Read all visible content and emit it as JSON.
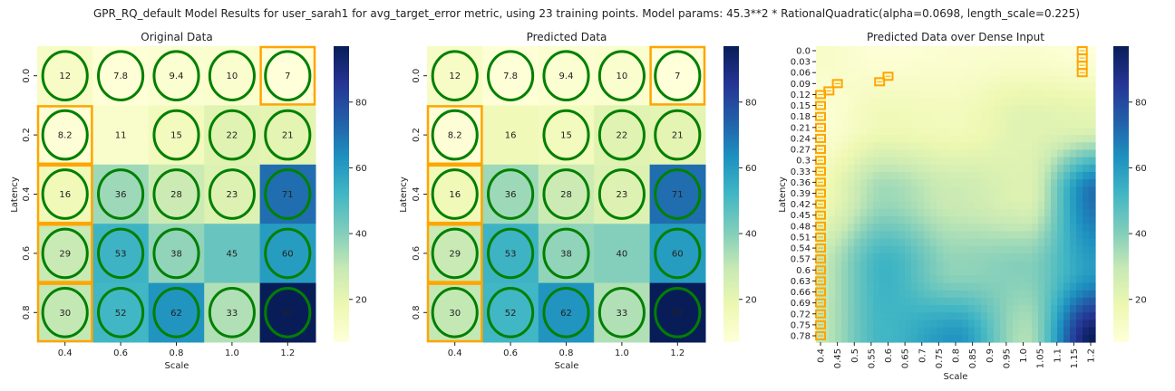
{
  "suptitle": "GPR_RQ_default Model Results for user_sarah1 for avg_target_error metric, using 23 training points. Model params: 45.3**2 * RationalQuadratic(alpha=0.0698, length_scale=0.225)",
  "colors": {
    "cmap": [
      "#ffffd9",
      "#edf8b1",
      "#c7e9b4",
      "#7fcdbb",
      "#41b6c4",
      "#1d91c0",
      "#225ea8",
      "#253494",
      "#081d58"
    ],
    "circle": "#008000",
    "box": "#ffa500"
  },
  "chart_data": [
    {
      "type": "heatmap",
      "title": "Original Data",
      "xlabel": "Scale",
      "ylabel": "Latency",
      "x_ticks": [
        "0.4",
        "0.6",
        "0.8",
        "1.0",
        "1.2"
      ],
      "y_ticks": [
        "0.0",
        "0.2",
        "0.4",
        "0.6",
        "0.8"
      ],
      "values": [
        [
          12,
          7.8,
          9.4,
          10,
          7
        ],
        [
          8.2,
          11,
          15,
          22,
          21
        ],
        [
          16,
          36,
          28,
          23,
          71
        ],
        [
          29,
          53,
          38,
          45,
          60
        ],
        [
          30,
          52,
          62,
          33,
          97
        ]
      ],
      "training_cells": [
        [
          0,
          0
        ],
        [
          0,
          1
        ],
        [
          0,
          2
        ],
        [
          0,
          3
        ],
        [
          0,
          4
        ],
        [
          1,
          0
        ],
        [
          1,
          2
        ],
        [
          1,
          3
        ],
        [
          1,
          4
        ],
        [
          2,
          0
        ],
        [
          2,
          1
        ],
        [
          2,
          2
        ],
        [
          2,
          3
        ],
        [
          2,
          4
        ],
        [
          3,
          0
        ],
        [
          3,
          1
        ],
        [
          3,
          2
        ],
        [
          3,
          4
        ],
        [
          4,
          0
        ],
        [
          4,
          1
        ],
        [
          4,
          2
        ],
        [
          4,
          3
        ],
        [
          4,
          4
        ]
      ],
      "highlight_cells": [
        [
          0,
          4
        ],
        [
          1,
          0
        ],
        [
          2,
          0
        ],
        [
          3,
          0
        ],
        [
          4,
          0
        ]
      ],
      "colorbar_ticks": [
        20,
        40,
        60,
        80
      ],
      "vrange": [
        7,
        97
      ]
    },
    {
      "type": "heatmap",
      "title": "Predicted Data",
      "xlabel": "Scale",
      "ylabel": "Latency",
      "x_ticks": [
        "0.4",
        "0.6",
        "0.8",
        "1.0",
        "1.2"
      ],
      "y_ticks": [
        "0.0",
        "0.2",
        "0.4",
        "0.6",
        "0.8"
      ],
      "values": [
        [
          12,
          7.8,
          9.4,
          10,
          7
        ],
        [
          8.2,
          16,
          15,
          22,
          21
        ],
        [
          16,
          36,
          28,
          23,
          71
        ],
        [
          29,
          53,
          38,
          40,
          60
        ],
        [
          30,
          52,
          62,
          33,
          97
        ]
      ],
      "training_cells": [
        [
          0,
          0
        ],
        [
          0,
          1
        ],
        [
          0,
          2
        ],
        [
          0,
          3
        ],
        [
          0,
          4
        ],
        [
          1,
          0
        ],
        [
          1,
          2
        ],
        [
          1,
          3
        ],
        [
          1,
          4
        ],
        [
          2,
          0
        ],
        [
          2,
          1
        ],
        [
          2,
          2
        ],
        [
          2,
          3
        ],
        [
          2,
          4
        ],
        [
          3,
          0
        ],
        [
          3,
          1
        ],
        [
          3,
          2
        ],
        [
          3,
          4
        ],
        [
          4,
          0
        ],
        [
          4,
          1
        ],
        [
          4,
          2
        ],
        [
          4,
          3
        ],
        [
          4,
          4
        ]
      ],
      "highlight_cells": [
        [
          0,
          4
        ],
        [
          1,
          0
        ],
        [
          2,
          0
        ],
        [
          3,
          0
        ],
        [
          4,
          0
        ]
      ],
      "colorbar_ticks": [
        20,
        40,
        60,
        80
      ],
      "vrange": [
        7,
        97
      ]
    },
    {
      "type": "heatmap",
      "title": "Predicted Data over Dense Input",
      "xlabel": "Scale",
      "ylabel": "Latency",
      "x_ticks": [
        "0.4",
        "0.45",
        "0.5",
        "0.55",
        "0.6",
        "0.65",
        "0.7",
        "0.75",
        "0.8",
        "0.85",
        "0.9",
        "0.95",
        "1.0",
        "1.05",
        "1.1",
        "1.15",
        "1.2"
      ],
      "y_ticks": [
        "0.0",
        "0.03",
        "0.06",
        "0.09",
        "0.12",
        "0.15",
        "0.18",
        "0.21",
        "0.24",
        "0.27",
        "0.3",
        "0.33",
        "0.36",
        "0.39",
        "0.42",
        "0.45",
        "0.48",
        "0.51",
        "0.54",
        "0.57",
        "0.6",
        "0.63",
        "0.66",
        "0.69",
        "0.72",
        "0.75",
        "0.78"
      ],
      "x_range": [
        0.4,
        1.2
      ],
      "y_range": [
        0.0,
        0.8
      ],
      "source_grid_x": [
        0.4,
        0.6,
        0.8,
        1.0,
        1.2
      ],
      "source_grid_y": [
        0.0,
        0.2,
        0.4,
        0.6,
        0.8
      ],
      "source_values": [
        [
          12,
          7.8,
          9.4,
          10,
          7
        ],
        [
          8.2,
          16,
          15,
          22,
          21
        ],
        [
          16,
          36,
          28,
          23,
          71
        ],
        [
          29,
          53,
          38,
          40,
          60
        ],
        [
          30,
          52,
          62,
          33,
          97
        ]
      ],
      "highlight_points": [
        [
          0.4,
          0.12
        ],
        [
          0.4,
          0.15
        ],
        [
          0.4,
          0.18
        ],
        [
          0.4,
          0.21
        ],
        [
          0.4,
          0.24
        ],
        [
          0.4,
          0.27
        ],
        [
          0.4,
          0.3
        ],
        [
          0.4,
          0.33
        ],
        [
          0.4,
          0.36
        ],
        [
          0.4,
          0.39
        ],
        [
          0.4,
          0.42
        ],
        [
          0.4,
          0.45
        ],
        [
          0.4,
          0.48
        ],
        [
          0.4,
          0.51
        ],
        [
          0.4,
          0.54
        ],
        [
          0.4,
          0.57
        ],
        [
          0.4,
          0.6
        ],
        [
          0.4,
          0.63
        ],
        [
          0.4,
          0.66
        ],
        [
          0.4,
          0.69
        ],
        [
          0.4,
          0.72
        ],
        [
          0.4,
          0.75
        ],
        [
          0.4,
          0.78
        ],
        [
          0.425,
          0.11
        ],
        [
          0.45,
          0.09
        ],
        [
          0.575,
          0.085
        ],
        [
          0.6,
          0.07
        ],
        [
          1.175,
          0.0
        ],
        [
          1.175,
          0.02
        ],
        [
          1.175,
          0.04
        ],
        [
          1.175,
          0.06
        ]
      ],
      "colorbar_ticks": [
        20,
        40,
        60,
        80
      ],
      "vrange": [
        7,
        97
      ]
    }
  ]
}
